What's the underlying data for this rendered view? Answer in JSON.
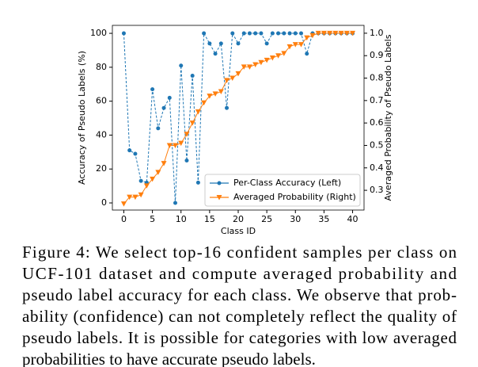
{
  "chart_data": {
    "type": "line",
    "xlabel": "Class ID",
    "ylabel": "Accuracy of Pseudo Labels (%)",
    "y2label": "Averaged Probability of Pseudo Labels",
    "x": [
      0,
      1,
      2,
      3,
      4,
      5,
      6,
      7,
      8,
      9,
      10,
      11,
      12,
      13,
      14,
      15,
      16,
      17,
      18,
      19,
      20,
      21,
      22,
      23,
      24,
      25,
      26,
      27,
      28,
      29,
      30,
      31,
      32,
      33,
      34,
      35,
      36,
      37,
      38,
      39,
      40
    ],
    "series": [
      {
        "name": "Per-Class Accuracy (Left)",
        "color": "#1f77b4",
        "marker": "o",
        "values": [
          100,
          31,
          29,
          13,
          12,
          67,
          44,
          56,
          62,
          0,
          81,
          25,
          75,
          12,
          100,
          94,
          88,
          94,
          56,
          100,
          94,
          100,
          100,
          100,
          100,
          94,
          100,
          100,
          100,
          100,
          100,
          100,
          88,
          100,
          100,
          100,
          100,
          100,
          100,
          100,
          100
        ]
      },
      {
        "name": "Averaged Probability (Right)",
        "color": "#ff7f0e",
        "marker": "v",
        "axis": "y2",
        "values": [
          0.24,
          0.27,
          0.27,
          0.28,
          0.32,
          0.35,
          0.38,
          0.42,
          0.5,
          0.5,
          0.51,
          0.55,
          0.6,
          0.65,
          0.69,
          0.72,
          0.73,
          0.74,
          0.79,
          0.8,
          0.82,
          0.85,
          0.85,
          0.86,
          0.87,
          0.88,
          0.89,
          0.9,
          0.91,
          0.94,
          0.95,
          0.95,
          0.98,
          0.99,
          1.0,
          1.0,
          1.0,
          1.0,
          1.0,
          1.0,
          1.0
        ]
      }
    ],
    "xlim": [
      -2,
      42
    ],
    "xticks": [
      0,
      5,
      10,
      15,
      20,
      25,
      30,
      35,
      40
    ],
    "ylim": [
      -4.2,
      104.7
    ],
    "yticks": [
      0,
      20,
      40,
      60,
      80,
      100
    ],
    "y2lim": [
      0.212,
      1.035
    ],
    "y2ticks": [
      0.3,
      0.4,
      0.5,
      0.6,
      0.7,
      0.8,
      0.9,
      {
        "value": 1,
        "label": "1.0"
      }
    ],
    "legend": "lower right"
  },
  "caption": [
    "Figure 4: We select top-16 confident samples per class on",
    "UCF-101 dataset and compute averaged probability and",
    "pseudo label accuracy for each class. We observe that prob-",
    "ability (confidence) can not completely reflect the quality of",
    "pseudo labels. It is possible for categories with low averaged",
    "probabilities to have accurate pseudo labels."
  ]
}
